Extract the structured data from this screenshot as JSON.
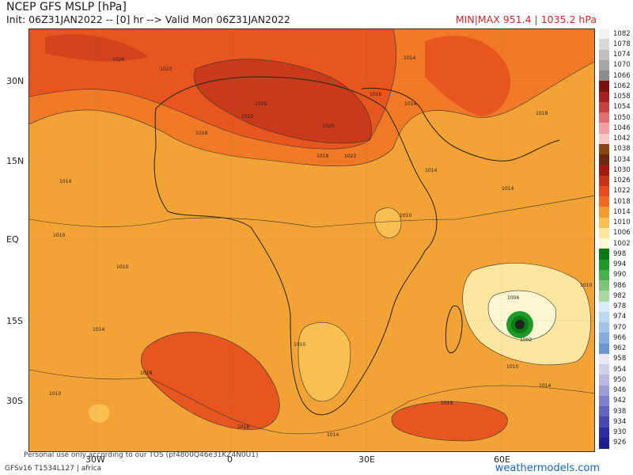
{
  "header": {
    "title": "NCEP GFS MSLP [hPa]",
    "init_line": "Init: 06Z31JAN2022 -- [0] hr --> Valid Mon 06Z31JAN2022",
    "minmax": "MIN|MAX 951.4 | 1035.2 hPa"
  },
  "axes": {
    "lat_labels": [
      "30N",
      "15N",
      "EQ",
      "15S",
      "30S"
    ],
    "lon_labels": [
      "30W",
      "0",
      "30E",
      "60E"
    ]
  },
  "colorbar": {
    "levels": [
      {
        "label": "1082",
        "color": "#f2f2f2"
      },
      {
        "label": "1078",
        "color": "#d9d9d9"
      },
      {
        "label": "1074",
        "color": "#bfbfbf"
      },
      {
        "label": "1070",
        "color": "#a6a6a6"
      },
      {
        "label": "1066",
        "color": "#8c8c8c"
      },
      {
        "label": "1062",
        "color": "#7a1010"
      },
      {
        "label": "1058",
        "color": "#a52020"
      },
      {
        "label": "1054",
        "color": "#c84040"
      },
      {
        "label": "1050",
        "color": "#e07070"
      },
      {
        "label": "1046",
        "color": "#f0a0a0"
      },
      {
        "label": "1042",
        "color": "#f8c8c8"
      },
      {
        "label": "1038",
        "color": "#8b4513"
      },
      {
        "label": "1034",
        "color": "#6b2a10"
      },
      {
        "label": "1030",
        "color": "#a31a10"
      },
      {
        "label": "1026",
        "color": "#c8321a"
      },
      {
        "label": "1022",
        "color": "#e64a1e"
      },
      {
        "label": "1018",
        "color": "#f26a22"
      },
      {
        "label": "1014",
        "color": "#f39a2e"
      },
      {
        "label": "1010",
        "color": "#f8c050"
      },
      {
        "label": "1006",
        "color": "#fbe6a0"
      },
      {
        "label": "1002",
        "color": "#fdf6d2"
      },
      {
        "label": "998",
        "color": "#0a7a12"
      },
      {
        "label": "994",
        "color": "#1e9a28"
      },
      {
        "label": "990",
        "color": "#48b04c"
      },
      {
        "label": "986",
        "color": "#7cc478"
      },
      {
        "label": "982",
        "color": "#a8d8a0"
      },
      {
        "label": "978",
        "color": "#d8ecf8"
      },
      {
        "label": "974",
        "color": "#bcd8f0"
      },
      {
        "label": "970",
        "color": "#a0c4e8"
      },
      {
        "label": "966",
        "color": "#84aede"
      },
      {
        "label": "962",
        "color": "#6a96d2"
      },
      {
        "label": "958",
        "color": "#e8e8f4"
      },
      {
        "label": "954",
        "color": "#d0d0ec"
      },
      {
        "label": "950",
        "color": "#b8b8e2"
      },
      {
        "label": "946",
        "color": "#9c9cd6"
      },
      {
        "label": "942",
        "color": "#8080ca"
      },
      {
        "label": "938",
        "color": "#6464be"
      },
      {
        "label": "934",
        "color": "#4848b0"
      },
      {
        "label": "930",
        "color": "#2e2ea2"
      },
      {
        "label": "926",
        "color": "#1e1e90"
      }
    ]
  },
  "map": {
    "contour_labels": [
      "1026",
      "1022",
      "1018",
      "1014",
      "1010",
      "1006",
      "1002"
    ]
  },
  "footer": {
    "model": "GFSv16 T1534L127 | africa",
    "watermark": "Personal use only according to our TOS (pf4800Q46e31KZ4N0U1)",
    "credit": "weathermodels.com"
  }
}
